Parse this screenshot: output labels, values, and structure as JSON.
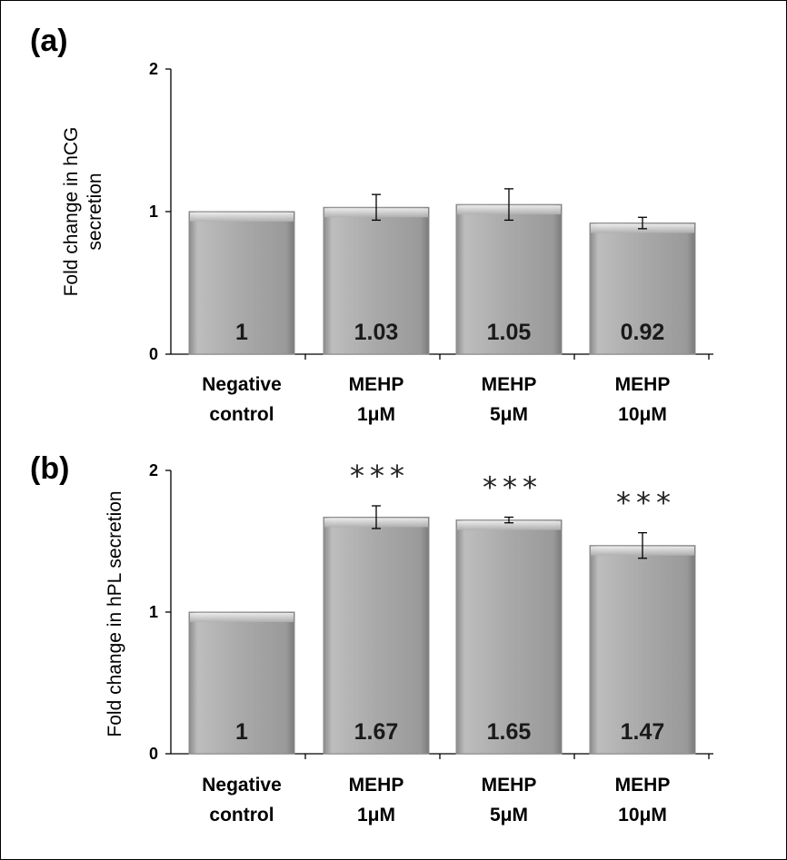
{
  "chart_data": [
    {
      "panel": "(a)",
      "type": "bar",
      "ylabel_lines": [
        "Fold change in hCG",
        "secretion"
      ],
      "ylim": [
        0,
        2
      ],
      "yticks": [
        "0",
        "1",
        "2"
      ],
      "categories": [
        [
          "Negative",
          "control"
        ],
        [
          "MEHP",
          "1μM"
        ],
        [
          "MEHP",
          "5μM"
        ],
        [
          "MEHP",
          "10μM"
        ]
      ],
      "values": [
        1,
        1.03,
        1.05,
        0.92
      ],
      "value_labels": [
        "1",
        "1.03",
        "1.05",
        "0.92"
      ],
      "error": [
        0,
        0.09,
        0.11,
        0.04
      ],
      "significance": [
        "",
        "",
        "",
        ""
      ]
    },
    {
      "panel": "(b)",
      "type": "bar",
      "ylabel_lines": [
        "Fold change in hPL secretion"
      ],
      "ylim": [
        0,
        2
      ],
      "yticks": [
        "0",
        "1",
        "2"
      ],
      "categories": [
        [
          "Negative",
          "control"
        ],
        [
          "MEHP",
          "1μM"
        ],
        [
          "MEHP",
          "5μM"
        ],
        [
          "MEHP",
          "10μM"
        ]
      ],
      "values": [
        1,
        1.67,
        1.65,
        1.47
      ],
      "value_labels": [
        "1",
        "1.67",
        "1.65",
        "1.47"
      ],
      "error": [
        0,
        0.08,
        0.02,
        0.09
      ],
      "significance": [
        "",
        "***",
        "***",
        "***"
      ]
    }
  ],
  "colors": {
    "bar_fill": "#a6a6a6",
    "bar_light": "#e8e8e8",
    "bar_dark": "#7a7a7a",
    "axis": "#000000"
  }
}
